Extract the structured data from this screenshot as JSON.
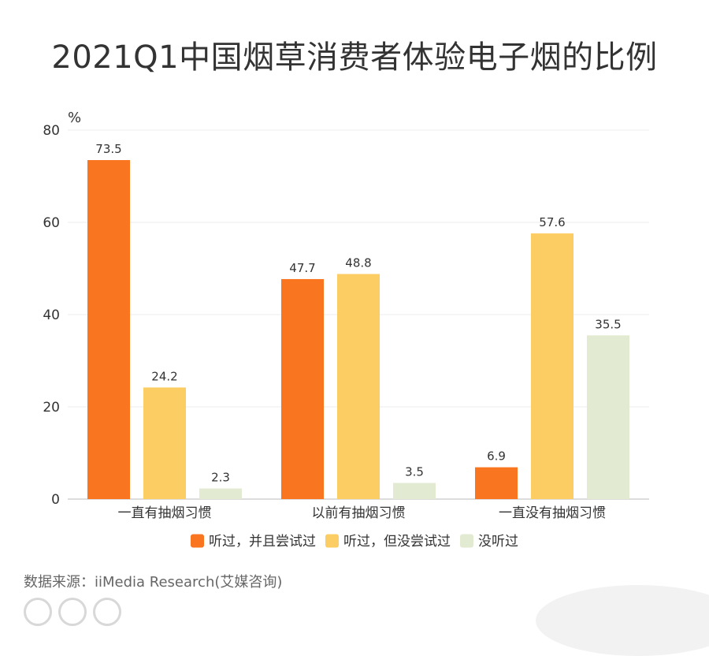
{
  "title": "2021Q1中国烟草消费者体验电子烟的比例",
  "source": "数据来源：iiMedia Research(艾媒咨询)",
  "chart_data": {
    "type": "bar",
    "title": "2021Q1中国烟草消费者体验电子烟的比例",
    "categories": [
      "一直有抽烟习惯",
      "以前有抽烟习惯",
      "一直没有抽烟习惯"
    ],
    "series": [
      {
        "name": "听过，并且尝试过",
        "color": "#f97520",
        "values": [
          73.5,
          47.7,
          6.9
        ]
      },
      {
        "name": "听过，但没尝试过",
        "color": "#fbcd62",
        "values": [
          24.2,
          48.8,
          57.6
        ]
      },
      {
        "name": "没听过",
        "color": "#e2ead1",
        "values": [
          2.3,
          3.5,
          35.5
        ]
      }
    ],
    "ylabel": "%",
    "ylim": [
      0,
      80
    ],
    "yticks": [
      0,
      20,
      40,
      60,
      80
    ],
    "grid": true,
    "legend": "bottom"
  }
}
